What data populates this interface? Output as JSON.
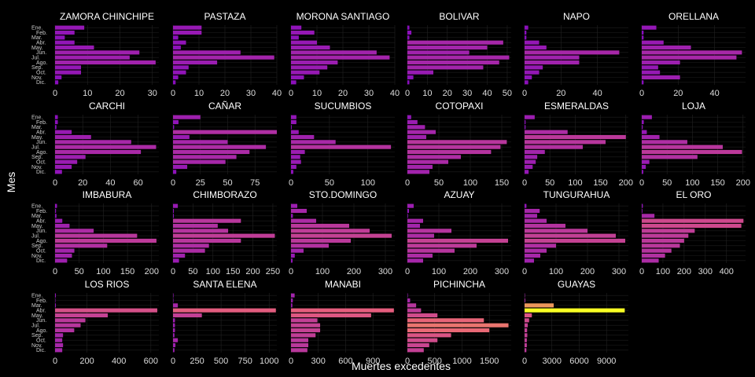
{
  "chart_data": {
    "type": "bar",
    "orientation": "horizontal",
    "xlabel": "Muertes excedentes",
    "ylabel": "Mes",
    "months": [
      "Ene.",
      "Feb.",
      "Mar.",
      "Abr.",
      "May.",
      "Jun.",
      "Jul.",
      "Ago.",
      "Sep.",
      "Oct.",
      "Nov.",
      "Dic."
    ],
    "month_labels_shown": [
      "Ene.",
      "Feb.",
      "Mar.",
      "Abr.",
      "May.",
      "Jun.",
      "Jul.",
      "Ago.",
      "Sep.",
      "Oct.",
      "Nov.",
      "Dic."
    ],
    "color_scale": {
      "low": "#7a00c8",
      "mid": "#e8617a",
      "high": "#f8ff24",
      "max_value": 11000
    },
    "grid": true,
    "panels": [
      {
        "name": "ZAMORA CHINCHIPE",
        "xmax": 32,
        "ticks": [
          0,
          10,
          20,
          30
        ],
        "values": [
          9,
          6,
          3,
          6,
          12,
          26,
          23,
          31,
          8,
          8,
          2,
          1
        ]
      },
      {
        "name": "PASTAZA",
        "xmax": 40,
        "ticks": [
          0,
          10,
          20,
          30,
          40
        ],
        "values": [
          11,
          11,
          2,
          5,
          3,
          26,
          39,
          17,
          6,
          5,
          2,
          1
        ]
      },
      {
        "name": "MORONA SANTIAGO",
        "xmax": 40,
        "ticks": [
          0,
          10,
          20,
          30,
          40
        ],
        "values": [
          4,
          9,
          3,
          10,
          15,
          33,
          38,
          18,
          14,
          11,
          5,
          2
        ]
      },
      {
        "name": "BOLIVAR",
        "xmax": 52,
        "ticks": [
          0,
          10,
          20,
          30,
          40,
          50
        ],
        "values": [
          1,
          2,
          1,
          48,
          40,
          31,
          51,
          46,
          38,
          13,
          3,
          1
        ]
      },
      {
        "name": "NAPO",
        "xmax": 57,
        "ticks": [
          0,
          20,
          40
        ],
        "values": [
          2,
          1,
          1,
          8,
          12,
          52,
          30,
          30,
          10,
          8,
          4,
          2
        ]
      },
      {
        "name": "ORELLANA",
        "xmax": 57,
        "ticks": [
          0,
          20,
          40
        ],
        "values": [
          8,
          1,
          1,
          12,
          27,
          55,
          52,
          21,
          9,
          10,
          21,
          1
        ]
      },
      {
        "name": "CARCHI",
        "xmax": 75,
        "ticks": [
          0,
          20,
          40,
          60
        ],
        "values": [
          2,
          2,
          1,
          12,
          26,
          55,
          73,
          62,
          22,
          16,
          12,
          5
        ]
      },
      {
        "name": "CAÑAR",
        "xmax": 95,
        "ticks": [
          0,
          25,
          50,
          75
        ],
        "values": [
          25,
          5,
          1,
          95,
          15,
          50,
          85,
          70,
          58,
          48,
          13,
          3
        ]
      },
      {
        "name": "SUCUMBIOS",
        "xmax": 135,
        "ticks": [
          0,
          50,
          100
        ],
        "values": [
          7,
          7,
          1,
          10,
          30,
          58,
          130,
          18,
          12,
          13,
          7,
          3
        ]
      },
      {
        "name": "COTOPAXI",
        "xmax": 165,
        "ticks": [
          0,
          50,
          100,
          150
        ],
        "values": [
          6,
          16,
          28,
          45,
          30,
          158,
          148,
          133,
          85,
          65,
          40,
          35
        ]
      },
      {
        "name": "ESMERALDAS",
        "xmax": 205,
        "ticks": [
          0,
          50,
          100,
          150,
          200
        ],
        "values": [
          20,
          2,
          2,
          85,
          200,
          160,
          115,
          40,
          25,
          22,
          16,
          8
        ]
      },
      {
        "name": "LOJA",
        "xmax": 205,
        "ticks": [
          0,
          50,
          100,
          150,
          200
        ],
        "values": [
          20,
          4,
          2,
          10,
          35,
          90,
          160,
          198,
          110,
          15,
          8,
          3
        ]
      },
      {
        "name": "IMBABURA",
        "xmax": 215,
        "ticks": [
          0,
          50,
          100,
          150,
          200
        ],
        "values": [
          4,
          2,
          3,
          15,
          30,
          80,
          170,
          210,
          108,
          40,
          35,
          25
        ]
      },
      {
        "name": "CHIMBORAZO",
        "xmax": 260,
        "ticks": [
          0,
          50,
          100,
          150,
          200,
          250
        ],
        "values": [
          12,
          2,
          2,
          170,
          112,
          138,
          255,
          170,
          90,
          80,
          30,
          15
        ]
      },
      {
        "name": "STO.DOMINGO",
        "xmax": 330,
        "ticks": [
          0,
          100,
          200,
          300
        ],
        "values": [
          20,
          50,
          6,
          80,
          185,
          250,
          320,
          190,
          120,
          40,
          12,
          5
        ]
      },
      {
        "name": "AZUAY",
        "xmax": 330,
        "ticks": [
          0,
          100,
          200,
          300
        ],
        "values": [
          20,
          5,
          2,
          50,
          40,
          140,
          85,
          320,
          220,
          150,
          80,
          50
        ]
      },
      {
        "name": "TUNGURAHUA",
        "xmax": 330,
        "ticks": [
          0,
          100,
          200,
          300
        ],
        "values": [
          6,
          48,
          40,
          70,
          130,
          200,
          290,
          320,
          100,
          70,
          50,
          30
        ]
      },
      {
        "name": "EL ORO",
        "xmax": 490,
        "ticks": [
          0,
          100,
          200,
          300,
          400
        ],
        "values": [
          5,
          3,
          60,
          480,
          470,
          250,
          220,
          200,
          180,
          140,
          110,
          80
        ]
      },
      {
        "name": "LOS RIOS",
        "xmax": 650,
        "ticks": [
          0,
          200,
          400,
          600
        ],
        "values": [
          5,
          2,
          5,
          640,
          330,
          190,
          160,
          120,
          50,
          45,
          50,
          45
        ]
      },
      {
        "name": "SANTA ELENA",
        "xmax": 1080,
        "ticks": [
          0,
          250,
          500,
          750,
          1000
        ],
        "values": [
          5,
          2,
          50,
          1070,
          300,
          20,
          20,
          20,
          15,
          50,
          25,
          15
        ]
      },
      {
        "name": "MANABI",
        "xmax": 1140,
        "ticks": [
          0,
          300,
          600,
          900
        ],
        "values": [
          40,
          20,
          15,
          1130,
          880,
          290,
          320,
          320,
          270,
          190,
          190,
          180
        ]
      },
      {
        "name": "PICHINCHA",
        "xmax": 1900,
        "ticks": [
          0,
          500,
          1000,
          1500
        ],
        "values": [
          8,
          50,
          160,
          250,
          550,
          1400,
          1850,
          1500,
          800,
          550,
          400,
          300
        ]
      },
      {
        "name": "GUAYAS",
        "xmax": 11400,
        "ticks": [
          0,
          3000,
          6000,
          9000
        ],
        "values": [
          40,
          80,
          3200,
          11000,
          800,
          500,
          350,
          280,
          300,
          250,
          250,
          200
        ]
      }
    ]
  }
}
